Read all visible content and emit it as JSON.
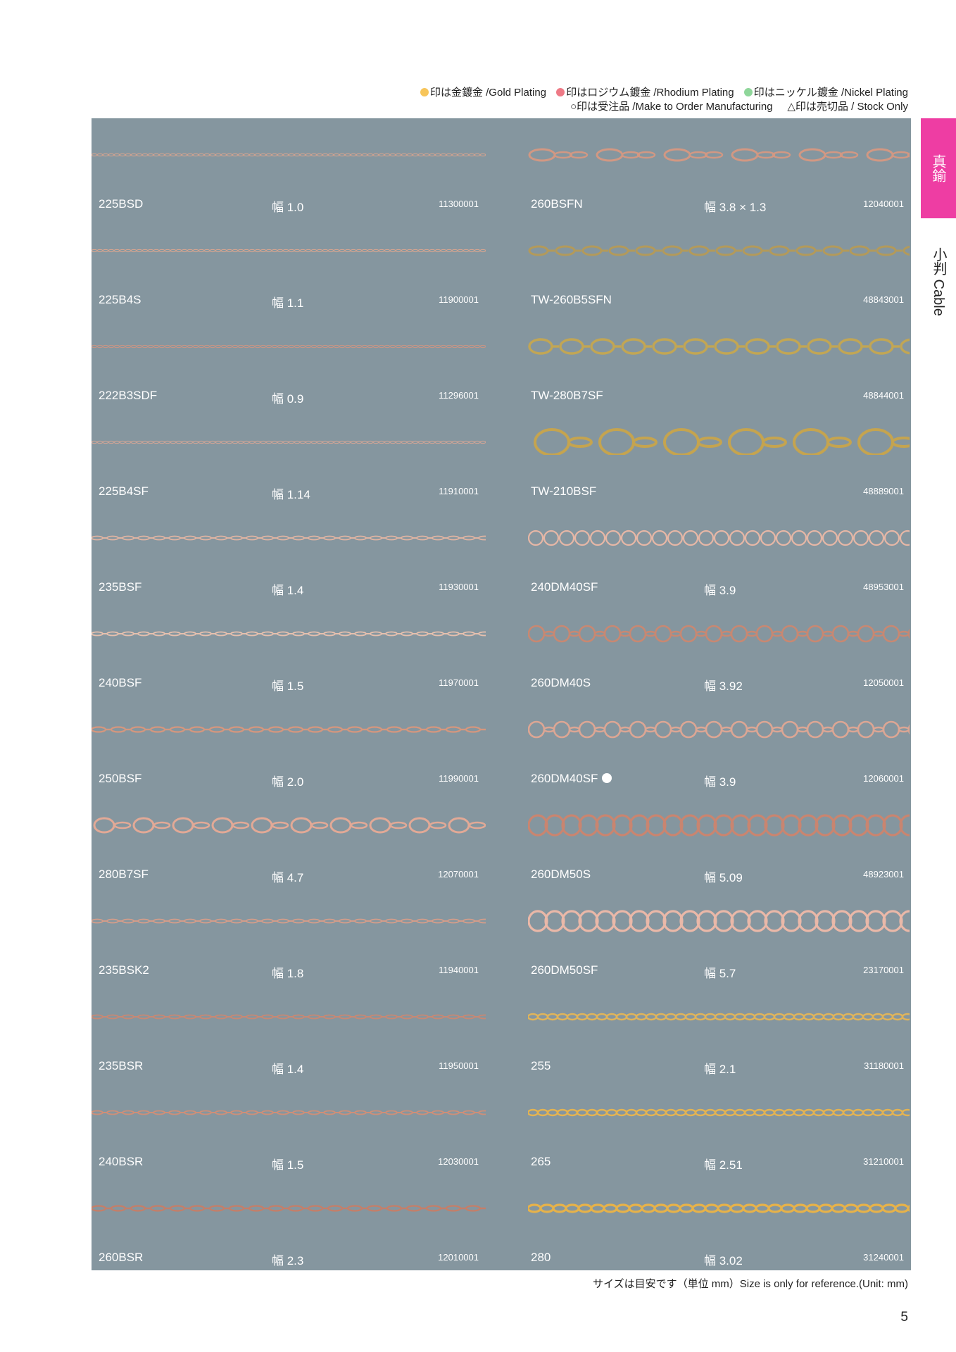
{
  "legend": {
    "gold": "印は金鍍金 /Gold Plating",
    "rhodium": "印はロジウム鍍金 /Rhodium Plating",
    "nickel": "印はニッケル鍍金 /Nickel Plating",
    "make_to_order": "○印は受注品 /Make to Order Manufacturing",
    "stock_only": "△印は売切品 / Stock Only"
  },
  "colors": {
    "gold_dot": "#f7c55a",
    "rhodium_dot": "#ee7a86",
    "nickel_dot": "#8fd69a",
    "panel": "#85969f",
    "tab": "#ee3da3"
  },
  "side": {
    "material": "真鍮",
    "category": "小判 Cable"
  },
  "left_items": [
    {
      "code": "225BSD",
      "width": "幅 1.0",
      "number": "11300001",
      "style": "fine",
      "color": "#d9a48e"
    },
    {
      "code": "225B4S",
      "width": "幅 1.1",
      "number": "11900001",
      "style": "fine",
      "color": "#d8a590"
    },
    {
      "code": "222B3SDF",
      "width": "幅 0.9",
      "number": "11296001",
      "style": "fine",
      "color": "#c99585"
    },
    {
      "code": "225B4SF",
      "width": "幅 1.14",
      "number": "11910001",
      "style": "fine",
      "color": "#d4a696"
    },
    {
      "code": "235BSF",
      "width": "幅 1.4",
      "number": "11930001",
      "style": "oval-small",
      "color": "#e0b4a2"
    },
    {
      "code": "240BSF",
      "width": "幅 1.5",
      "number": "11970001",
      "style": "oval-small",
      "color": "#e6c0ae"
    },
    {
      "code": "250BSF",
      "width": "幅 2.0",
      "number": "11990001",
      "style": "oval-med",
      "color": "#d5977e"
    },
    {
      "code": "280B7SF",
      "width": "幅 4.7",
      "number": "12070001",
      "style": "oval-large",
      "color": "#e2a996"
    },
    {
      "code": "235BSK2",
      "width": "幅 1.8",
      "number": "11940001",
      "style": "oval-small",
      "color": "#d49d8a"
    },
    {
      "code": "235BSR",
      "width": "幅 1.4",
      "number": "11950001",
      "style": "oval-small",
      "color": "#c98873"
    },
    {
      "code": "240BSR",
      "width": "幅 1.5",
      "number": "12030001",
      "style": "oval-small",
      "color": "#cf8f78"
    },
    {
      "code": "260BSR",
      "width": "幅 2.3",
      "number": "12010001",
      "style": "oval-med",
      "color": "#c57e68"
    }
  ],
  "right_items": [
    {
      "code": "260BSFN",
      "width": "幅 3.8 × 1.3",
      "number": "12040001",
      "style": "figaro",
      "color": "#d29883"
    },
    {
      "code": "TW-260B5SFN",
      "width": "",
      "number": "48843001",
      "style": "twist-small",
      "color": "#b39a5a"
    },
    {
      "code": "TW-280B7SF",
      "width": "",
      "number": "48844001",
      "style": "twist-med",
      "color": "#c2a654"
    },
    {
      "code": "TW-210BSF",
      "width": "",
      "number": "48889001",
      "style": "twist-large",
      "color": "#c5a44f"
    },
    {
      "code": "240DM40SF",
      "width": "幅 3.9",
      "number": "48953001",
      "style": "round",
      "color": "#e6b7a6"
    },
    {
      "code": "260DM40S",
      "width": "幅 3.92",
      "number": "12050001",
      "style": "round-alt",
      "color": "#c88872"
    },
    {
      "code": "260DM40SF",
      "width": "幅 3.9",
      "number": "12060001",
      "style": "round-alt",
      "color": "#dca694",
      "dot": true
    },
    {
      "code": "260DM50S",
      "width": "幅 5.09",
      "number": "48923001",
      "style": "round-big",
      "color": "#c98570"
    },
    {
      "code": "260DM50SF",
      "width": "幅 5.7",
      "number": "23170001",
      "style": "round-big",
      "color": "#eab8a8"
    },
    {
      "code": "255",
      "width": "幅 2.1",
      "number": "31180001",
      "style": "gold-small",
      "color": "#e0b45a"
    },
    {
      "code": "265",
      "width": "幅 2.51",
      "number": "31210001",
      "style": "gold-small",
      "color": "#e4b352"
    },
    {
      "code": "280",
      "width": "幅 3.02",
      "number": "31240001",
      "style": "gold-med",
      "color": "#e6b24a"
    }
  ],
  "footnote": "サイズは目安です（単位 mm）Size is only for reference.(Unit: mm)",
  "page_number": "5"
}
